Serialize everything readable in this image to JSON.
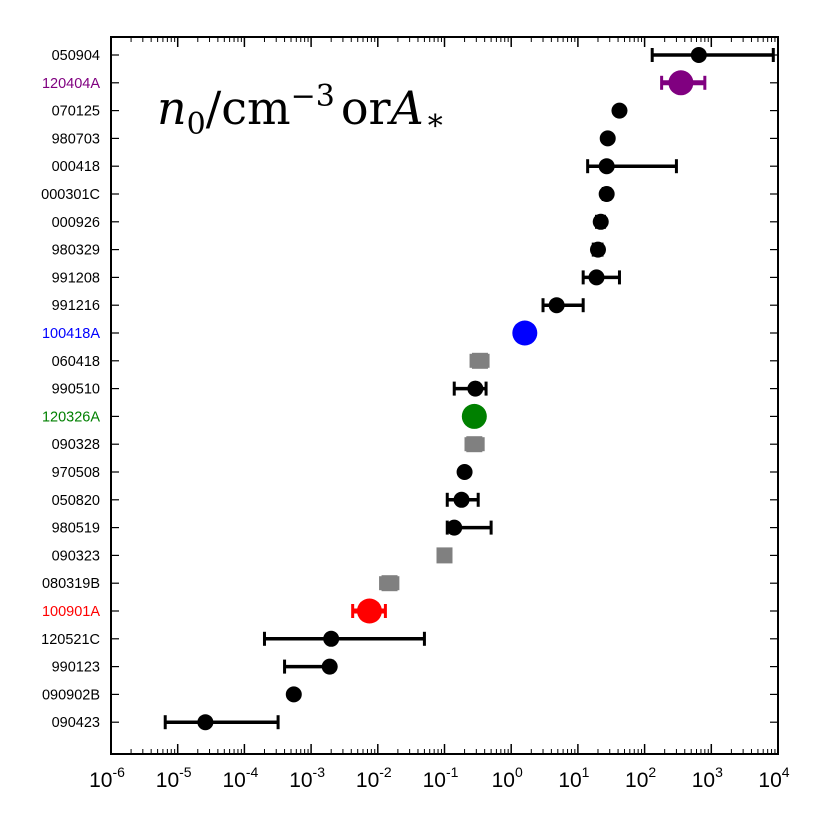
{
  "chart_data": {
    "type": "scatter",
    "title": "n0/cm^-3 or A*",
    "title_parts": {
      "symbol": "n",
      "subscript": "0",
      "slash_unit": "/cm",
      "unit_exponent": "−3",
      "connector": "or",
      "symbol2": "A",
      "subscript2": "*"
    },
    "xlabel": "",
    "ylabel": "",
    "xscale": "log",
    "xlim": [
      1e-06,
      10000.0
    ],
    "x_ticks": [
      {
        "base": "10",
        "exp": "-6",
        "value": 1e-06
      },
      {
        "base": "10",
        "exp": "-5",
        "value": 1e-05
      },
      {
        "base": "10",
        "exp": "-4",
        "value": 0.0001
      },
      {
        "base": "10",
        "exp": "-3",
        "value": 0.001
      },
      {
        "base": "10",
        "exp": "-2",
        "value": 0.01
      },
      {
        "base": "10",
        "exp": "-1",
        "value": 0.1
      },
      {
        "base": "10",
        "exp": "0",
        "value": 1
      },
      {
        "base": "10",
        "exp": "1",
        "value": 10
      },
      {
        "base": "10",
        "exp": "2",
        "value": 100
      },
      {
        "base": "10",
        "exp": "3",
        "value": 1000
      },
      {
        "base": "10",
        "exp": "4",
        "value": 10000
      }
    ],
    "colors": {
      "black": "#000000",
      "purple": "#800080",
      "blue": "#0000ff",
      "green": "#008000",
      "red": "#ff0000",
      "gray": "#808080"
    },
    "points": [
      {
        "label": "050904",
        "value": 650,
        "err_low": 130,
        "err_high": 8500,
        "marker": "circle",
        "color": "black"
      },
      {
        "label": "120404A",
        "value": 350,
        "err_low": 180,
        "err_high": 800,
        "marker": "circle-large",
        "color": "purple"
      },
      {
        "label": "070125",
        "value": 42,
        "err_low": null,
        "err_high": null,
        "marker": "circle",
        "color": "black"
      },
      {
        "label": "980703",
        "value": 28,
        "err_low": null,
        "err_high": null,
        "marker": "circle",
        "color": "black"
      },
      {
        "label": "000418",
        "value": 27,
        "err_low": 14,
        "err_high": 300,
        "marker": "circle",
        "color": "black"
      },
      {
        "label": "000301C",
        "value": 27,
        "err_low": 24,
        "err_high": 30,
        "marker": "circle",
        "color": "black"
      },
      {
        "label": "000926",
        "value": 22,
        "err_low": 19,
        "err_high": 25,
        "marker": "circle",
        "color": "black"
      },
      {
        "label": "980329",
        "value": 20,
        "err_low": 17,
        "err_high": 23,
        "marker": "circle",
        "color": "black"
      },
      {
        "label": "991208",
        "value": 19,
        "err_low": 12,
        "err_high": 42,
        "marker": "circle",
        "color": "black"
      },
      {
        "label": "991216",
        "value": 4.8,
        "err_low": 3,
        "err_high": 12,
        "marker": "circle",
        "color": "black"
      },
      {
        "label": "100418A",
        "value": 1.6,
        "err_low": null,
        "err_high": null,
        "marker": "circle-large",
        "color": "blue"
      },
      {
        "label": "060418",
        "value": 0.34,
        "err_low": 0.25,
        "err_high": 0.45,
        "marker": "square",
        "color": "gray"
      },
      {
        "label": "990510",
        "value": 0.29,
        "err_low": 0.14,
        "err_high": 0.42,
        "marker": "circle",
        "color": "black"
      },
      {
        "label": "120326A",
        "value": 0.28,
        "err_low": null,
        "err_high": null,
        "marker": "circle-large",
        "color": "green"
      },
      {
        "label": "090328",
        "value": 0.28,
        "err_low": 0.21,
        "err_high": 0.38,
        "marker": "square",
        "color": "gray"
      },
      {
        "label": "970508",
        "value": 0.2,
        "err_low": null,
        "err_high": null,
        "marker": "circle",
        "color": "black"
      },
      {
        "label": "050820",
        "value": 0.18,
        "err_low": 0.11,
        "err_high": 0.32,
        "marker": "circle",
        "color": "black"
      },
      {
        "label": "980519",
        "value": 0.14,
        "err_low": 0.11,
        "err_high": 0.5,
        "marker": "circle",
        "color": "black"
      },
      {
        "label": "090323",
        "value": 0.1,
        "err_low": null,
        "err_high": null,
        "marker": "square",
        "color": "gray"
      },
      {
        "label": "080319B",
        "value": 0.015,
        "err_low": 0.011,
        "err_high": 0.02,
        "marker": "square",
        "color": "gray"
      },
      {
        "label": "100901A",
        "value": 0.0075,
        "err_low": 0.0042,
        "err_high": 0.013,
        "marker": "circle-large",
        "color": "red"
      },
      {
        "label": "120521C",
        "value": 0.002,
        "err_low": 0.0002,
        "err_high": 0.05,
        "marker": "circle",
        "color": "black"
      },
      {
        "label": "990123",
        "value": 0.0019,
        "err_low": 0.0004,
        "err_high": 0.0021,
        "marker": "circle",
        "color": "black"
      },
      {
        "label": "090902B",
        "value": 0.00055,
        "err_low": null,
        "err_high": null,
        "marker": "circle",
        "color": "black"
      },
      {
        "label": "090423",
        "value": 2.6e-05,
        "err_low": 6.5e-06,
        "err_high": 0.00032,
        "marker": "circle",
        "color": "black"
      }
    ]
  }
}
